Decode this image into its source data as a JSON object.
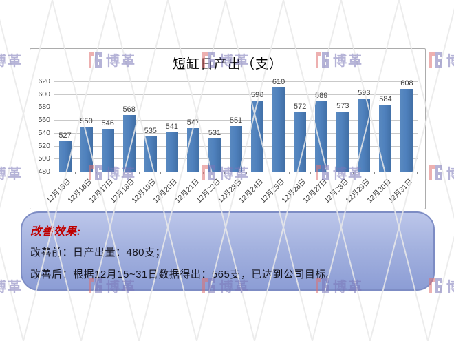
{
  "chart_data": {
    "type": "bar",
    "title": "短缸日产出（支）",
    "categories": [
      "12月15日",
      "12月16日",
      "12月17日",
      "12月18日",
      "12月19日",
      "12月20日",
      "12月21日",
      "12月22日",
      "12月23日",
      "12月24日",
      "12月25日",
      "12月26日",
      "12月27日",
      "12月28日",
      "12月29日",
      "12月30日",
      "12月31日"
    ],
    "values": [
      527,
      550,
      546,
      568,
      535,
      541,
      547,
      531,
      551,
      590,
      610,
      572,
      589,
      573,
      593,
      584,
      608
    ],
    "xlabel": "",
    "ylabel": "",
    "ylim": [
      480,
      620
    ],
    "yticks": [
      480,
      500,
      520,
      540,
      560,
      580,
      600,
      620
    ],
    "grid": true,
    "legend": false,
    "data_labels": true,
    "bar_color": "#4F81BD"
  },
  "callout": {
    "heading": "改善效果:",
    "lines": [
      "改善前：日产出量：480支；",
      "改善后：根据12月15~31日数据得出：565支，已达到公司目标。"
    ],
    "heading_color": "#C00000"
  },
  "watermark": {
    "brand": "博革",
    "text_color": "#7A76B8",
    "icon_red": "#E07070",
    "icon_purple": "#7A76B8"
  }
}
